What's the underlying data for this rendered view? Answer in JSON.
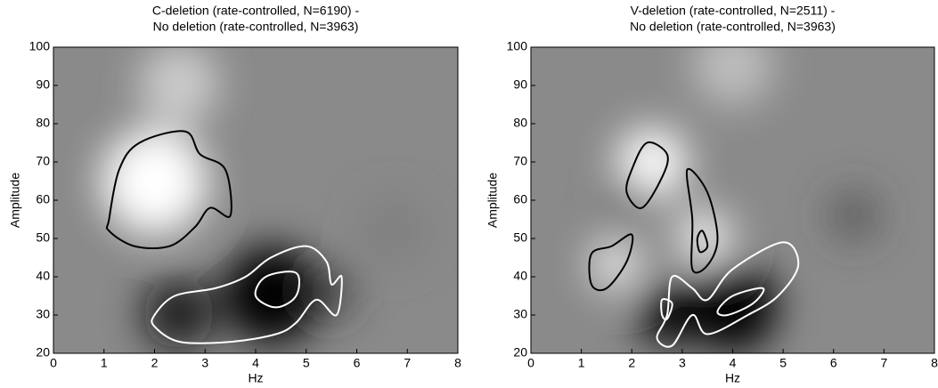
{
  "chart_data": [
    {
      "type": "contour",
      "title": [
        "C-deletion (rate-controlled, N=6190) -",
        "No deletion (rate-controlled, N=3963)"
      ],
      "xlabel": "Hz",
      "ylabel": "Amplitude",
      "xlim": [
        0,
        8
      ],
      "ylim": [
        20,
        100
      ],
      "xticks": [
        0,
        1,
        2,
        3,
        4,
        5,
        6,
        7,
        8
      ],
      "yticks": [
        20,
        30,
        40,
        50,
        60,
        70,
        80,
        90,
        100
      ]
    },
    {
      "type": "contour",
      "title": [
        "V-deletion (rate-controlled, N=2511) -",
        "No deletion (rate-controlled, N=3963)"
      ],
      "xlabel": "Hz",
      "ylabel": "Amplitude",
      "xlim": [
        0,
        8
      ],
      "ylim": [
        20,
        100
      ],
      "xticks": [
        0,
        1,
        2,
        3,
        4,
        5,
        6,
        7,
        8
      ],
      "yticks": [
        20,
        30,
        40,
        50,
        60,
        70,
        80,
        90,
        100
      ]
    }
  ]
}
